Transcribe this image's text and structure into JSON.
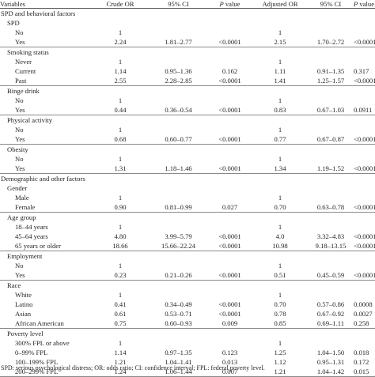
{
  "header": {
    "variables": "Variables",
    "crude_or": "Crude OR",
    "ci1": "95% CI",
    "p_italic": "P",
    "p_rest": " value",
    "adjusted_or": "Adjusted OR",
    "ci2": "95% CI",
    "p2_italic": "P",
    "p2_rest": " value"
  },
  "rows": [
    {
      "level": 0,
      "label": "SPD and behavioral factors",
      "crude": "",
      "ci1": "",
      "p1": "",
      "adj": "",
      "ci2": "",
      "p2": ""
    },
    {
      "level": 1,
      "label": "SPD",
      "crude": "",
      "ci1": "",
      "p1": "",
      "adj": "",
      "ci2": "",
      "p2": ""
    },
    {
      "level": 2,
      "label": "No",
      "crude": "1",
      "ci1": "",
      "p1": "",
      "adj": "1",
      "ci2": "",
      "p2": ""
    },
    {
      "level": 2,
      "label": "Yes",
      "crude": "2.24",
      "ci1": "1.81–2.77",
      "p1": "<0.0001",
      "adj": "2.15",
      "ci2": "1.70–2.72",
      "p2": "<0.0001",
      "sep": true
    },
    {
      "level": 1,
      "label": "Smoking status",
      "crude": "",
      "ci1": "",
      "p1": "",
      "adj": "",
      "ci2": "",
      "p2": ""
    },
    {
      "level": 2,
      "label": "Never",
      "crude": "1",
      "ci1": "",
      "p1": "",
      "adj": "1",
      "ci2": "",
      "p2": ""
    },
    {
      "level": 2,
      "label": "Current",
      "crude": "1.14",
      "ci1": "0.95–1.36",
      "p1": "0.162",
      "adj": "1.11",
      "ci2": "0.91–1.35",
      "p2": "0.317"
    },
    {
      "level": 2,
      "label": "Past",
      "crude": "2.55",
      "ci1": "2.28–2.85",
      "p1": "<0.0001",
      "adj": "1.41",
      "ci2": "1.25–1.57",
      "p2": "<0.0001",
      "sep": true
    },
    {
      "level": 1,
      "label": "Binge drink",
      "crude": "",
      "ci1": "",
      "p1": "",
      "adj": "",
      "ci2": "",
      "p2": ""
    },
    {
      "level": 2,
      "label": "No",
      "crude": "1",
      "ci1": "",
      "p1": "",
      "adj": "1",
      "ci2": "",
      "p2": ""
    },
    {
      "level": 2,
      "label": "Yes",
      "crude": "0.44",
      "ci1": "0.36–0.54",
      "p1": "<0.0001",
      "adj": "0.83",
      "ci2": "0.67–1.03",
      "p2": "0.0911",
      "sep": true
    },
    {
      "level": 1,
      "label": "Physical activity",
      "crude": "",
      "ci1": "",
      "p1": "",
      "adj": "",
      "ci2": "",
      "p2": ""
    },
    {
      "level": 2,
      "label": "No",
      "crude": "1",
      "ci1": "",
      "p1": "",
      "adj": "1",
      "ci2": "",
      "p2": ""
    },
    {
      "level": 2,
      "label": "Yes",
      "crude": "0.68",
      "ci1": "0.60–0.77",
      "p1": "<0.0001",
      "adj": "0.77",
      "ci2": "0.67–0.87",
      "p2": "<0.0001",
      "sep": true
    },
    {
      "level": 1,
      "label": "Obesity",
      "crude": "",
      "ci1": "",
      "p1": "",
      "adj": "",
      "ci2": "",
      "p2": ""
    },
    {
      "level": 2,
      "label": "No",
      "crude": "1",
      "ci1": "",
      "p1": "",
      "adj": "1",
      "ci2": "",
      "p2": ""
    },
    {
      "level": 2,
      "label": "Yes",
      "crude": "1.31",
      "ci1": "1.18–1.46",
      "p1": "<0.0001",
      "adj": "1.34",
      "ci2": "1.19–1.52",
      "p2": "<0.0001",
      "sep": true
    },
    {
      "level": 0,
      "label": "Demographic and other factors",
      "crude": "",
      "ci1": "",
      "p1": "",
      "adj": "",
      "ci2": "",
      "p2": ""
    },
    {
      "level": 1,
      "label": "Gender",
      "crude": "",
      "ci1": "",
      "p1": "",
      "adj": "",
      "ci2": "",
      "p2": ""
    },
    {
      "level": 2,
      "label": "Male",
      "crude": "1",
      "ci1": "",
      "p1": "",
      "adj": "1",
      "ci2": "",
      "p2": ""
    },
    {
      "level": 2,
      "label": "Female",
      "crude": "0.90",
      "ci1": "0.81–0.99",
      "p1": "0.027",
      "adj": "0.70",
      "ci2": "0.63–0.78",
      "p2": "<0.0001",
      "sep": true
    },
    {
      "level": 1,
      "label": "Age group",
      "crude": "",
      "ci1": "",
      "p1": "",
      "adj": "",
      "ci2": "",
      "p2": ""
    },
    {
      "level": 2,
      "label": "18–44 years",
      "crude": "1",
      "ci1": "",
      "p1": "",
      "adj": "1",
      "ci2": "",
      "p2": ""
    },
    {
      "level": 2,
      "label": "45–64 years",
      "crude": "4.80",
      "ci1": "3.99–5.79",
      "p1": "<0.0001",
      "adj": "4.0",
      "ci2": "3.32–4.83",
      "p2": "<0.0001"
    },
    {
      "level": 2,
      "label": "65 years or older",
      "crude": "18.66",
      "ci1": "15.66–22.24",
      "p1": "<0.0001",
      "adj": "10.98",
      "ci2": "9.18–13.15",
      "p2": "<0.0001",
      "sep": true
    },
    {
      "level": 1,
      "label": "Employment",
      "crude": "",
      "ci1": "",
      "p1": "",
      "adj": "",
      "ci2": "",
      "p2": ""
    },
    {
      "level": 2,
      "label": "No",
      "crude": "1",
      "ci1": "",
      "p1": "",
      "adj": "1",
      "ci2": "",
      "p2": ""
    },
    {
      "level": 2,
      "label": "Yes",
      "crude": "0.23",
      "ci1": "0.21–0.26",
      "p1": "<0.0001",
      "adj": "0.51",
      "ci2": "0.45–0.59",
      "p2": "<0.0001",
      "sep": true
    },
    {
      "level": 1,
      "label": "Race",
      "crude": "",
      "ci1": "",
      "p1": "",
      "adj": "",
      "ci2": "",
      "p2": ""
    },
    {
      "level": 2,
      "label": "White",
      "crude": "1",
      "ci1": "",
      "p1": "",
      "adj": "1",
      "ci2": "",
      "p2": ""
    },
    {
      "level": 2,
      "label": "Latino",
      "crude": "0.41",
      "ci1": "0.34–0.49",
      "p1": "<0.0001",
      "adj": "0.70",
      "ci2": "0.57–0.86",
      "p2": "0.0008"
    },
    {
      "level": 2,
      "label": "Asian",
      "crude": "0.61",
      "ci1": "0.53–0.71",
      "p1": "<0.0001",
      "adj": "0.78",
      "ci2": "0.67–0.92",
      "p2": "0.0027"
    },
    {
      "level": 2,
      "label": "African American",
      "crude": "0.75",
      "ci1": "0.60–0.93",
      "p1": "0.009",
      "adj": "0.85",
      "ci2": "0.69–1.11",
      "p2": "0.258",
      "sep": true
    },
    {
      "level": 1,
      "label": "Poverty level",
      "crude": "",
      "ci1": "",
      "p1": "",
      "adj": "",
      "ci2": "",
      "p2": ""
    },
    {
      "level": 2,
      "label": "300% FPL or above",
      "crude": "1",
      "ci1": "",
      "p1": "",
      "adj": "1",
      "ci2": "",
      "p2": ""
    },
    {
      "level": 2,
      "label": "0–99% FPL",
      "crude": "1.14",
      "ci1": "0.97–1.35",
      "p1": "0.123",
      "adj": "1.25",
      "ci2": "1.04–1.50",
      "p2": "0.018"
    },
    {
      "level": 2,
      "label": "100–199% FPL",
      "crude": "1.21",
      "ci1": "1.04–1.41",
      "p1": "0.013",
      "adj": "1.12",
      "ci2": "0.95–1.31",
      "p2": "0.172"
    },
    {
      "level": 2,
      "label": "200–299% FPL",
      "crude": "1.24",
      "ci1": "1.06–1.44",
      "p1": "0.007",
      "adj": "1.21",
      "ci2": "1.04–1.42",
      "p2": "0.015",
      "sep": true
    }
  ],
  "footnote": "SPD: serious psychological distress; OR: odds ratio; CI: confidence interval; FPL: federal poverty level."
}
